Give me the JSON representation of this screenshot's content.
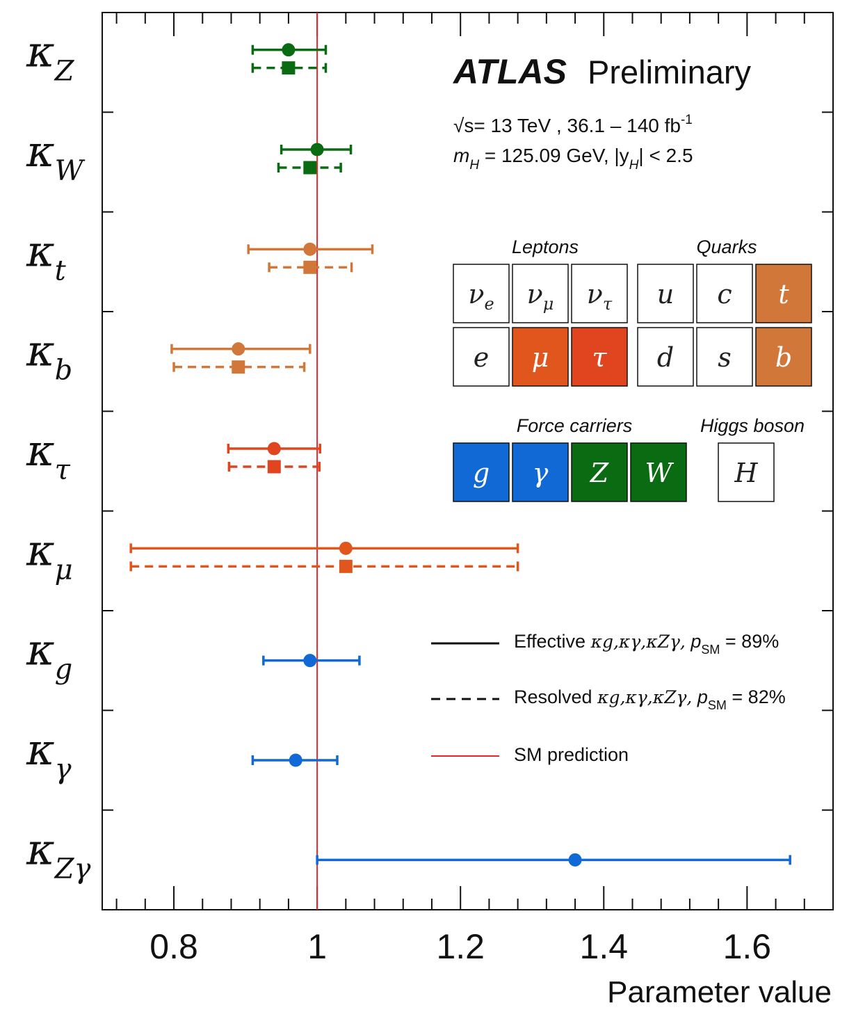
{
  "chart_data": {
    "type": "scatter",
    "xlabel": "Parameter value",
    "xlim": [
      0.7,
      1.72
    ],
    "x_ticks": [
      "0.8",
      "1",
      "1.2",
      "1.4",
      "1.6"
    ],
    "reference_line": {
      "x": 1.0,
      "color": "#e8262b",
      "label": "SM prediction"
    },
    "parameters": [
      {
        "label": "κZ",
        "main": "κ",
        "sub": "Z",
        "color": "#0a6b12",
        "effective": {
          "value": 0.96,
          "low": 0.91,
          "high": 1.012
        },
        "resolved": {
          "value": 0.96,
          "low": 0.91,
          "high": 1.012
        }
      },
      {
        "label": "κW",
        "main": "κ",
        "sub": "W",
        "color": "#0a6b12",
        "effective": {
          "value": 1.0,
          "low": 0.95,
          "high": 1.047
        },
        "resolved": {
          "value": 0.99,
          "low": 0.946,
          "high": 1.033
        }
      },
      {
        "label": "κt",
        "main": "κ",
        "sub": "t",
        "color": "#d1773a",
        "effective": {
          "value": 0.99,
          "low": 0.904,
          "high": 1.077
        },
        "resolved": {
          "value": 0.99,
          "low": 0.933,
          "high": 1.048
        }
      },
      {
        "label": "κb",
        "main": "κ",
        "sub": "b",
        "color": "#d1773a",
        "effective": {
          "value": 0.89,
          "low": 0.797,
          "high": 0.99
        },
        "resolved": {
          "value": 0.89,
          "low": 0.8,
          "high": 0.982
        }
      },
      {
        "label": "κτ",
        "main": "κ",
        "sub": "τ",
        "color": "#e1451f",
        "effective": {
          "value": 0.94,
          "low": 0.876,
          "high": 1.004
        },
        "resolved": {
          "value": 0.94,
          "low": 0.877,
          "high": 1.003
        }
      },
      {
        "label": "κμ",
        "main": "κ",
        "sub": "μ",
        "color": "#e1561d",
        "effective": {
          "value": 1.04,
          "low": 0.74,
          "high": 1.28
        },
        "resolved": {
          "value": 1.04,
          "low": 0.74,
          "high": 1.28
        }
      },
      {
        "label": "κg",
        "main": "κ",
        "sub": "g",
        "color": "#1169d6",
        "effective": {
          "value": 0.99,
          "low": 0.925,
          "high": 1.059
        },
        "resolved": null
      },
      {
        "label": "κγ",
        "main": "κ",
        "sub": "γ",
        "color": "#1169d6",
        "effective": {
          "value": 0.97,
          "low": 0.91,
          "high": 1.028
        },
        "resolved": null
      },
      {
        "label": "κZγ",
        "main": "κ",
        "sub": "Zγ",
        "color": "#1169d6",
        "effective": {
          "value": 1.36,
          "low": 1.0,
          "high": 1.66
        },
        "resolved": null
      }
    ]
  },
  "header": {
    "brand": "ATLAS",
    "status": "Preliminary",
    "line1": "= 13 TeV  , 36.1 – 140 fb",
    "line1_sqrt": "√s",
    "line1_sup": "-1",
    "line2_pre": "m",
    "line2_sub": "H",
    "line2_mid": " = 125.09 GeV, |y",
    "line2_sub2": "H",
    "line2_end": "| < 2.5"
  },
  "particles": {
    "leptons_title": "Leptons",
    "quarks_title": "Quarks",
    "force_title": "Force carriers",
    "higgs_title": "Higgs boson",
    "cells": [
      {
        "sym": "ν",
        "sub": "e",
        "fill": "#ffffff",
        "text": "#222222"
      },
      {
        "sym": "ν",
        "sub": "μ",
        "fill": "#ffffff",
        "text": "#222222"
      },
      {
        "sym": "ν",
        "sub": "τ",
        "fill": "#ffffff",
        "text": "#222222"
      },
      {
        "sym": "u",
        "sub": "",
        "fill": "#ffffff",
        "text": "#222222"
      },
      {
        "sym": "c",
        "sub": "",
        "fill": "#ffffff",
        "text": "#222222"
      },
      {
        "sym": "t",
        "sub": "",
        "fill": "#d1773a",
        "text": "#ffffff"
      },
      {
        "sym": "e",
        "sub": "",
        "fill": "#ffffff",
        "text": "#222222"
      },
      {
        "sym": "μ",
        "sub": "",
        "fill": "#e1561d",
        "text": "#ffffff"
      },
      {
        "sym": "τ",
        "sub": "",
        "fill": "#e1451f",
        "text": "#ffffff"
      },
      {
        "sym": "d",
        "sub": "",
        "fill": "#ffffff",
        "text": "#222222"
      },
      {
        "sym": "s",
        "sub": "",
        "fill": "#ffffff",
        "text": "#222222"
      },
      {
        "sym": "b",
        "sub": "",
        "fill": "#d1773a",
        "text": "#ffffff"
      },
      {
        "sym": "g",
        "sub": "",
        "fill": "#1169d6",
        "text": "#ffffff"
      },
      {
        "sym": "γ",
        "sub": "",
        "fill": "#1169d6",
        "text": "#ffffff"
      },
      {
        "sym": "Z",
        "sub": "",
        "fill": "#0a6b12",
        "text": "#ffffff"
      },
      {
        "sym": "W",
        "sub": "",
        "fill": "#0a6b12",
        "text": "#ffffff"
      },
      {
        "sym": "H",
        "sub": "",
        "fill": "#ffffff",
        "text": "#222222"
      }
    ]
  },
  "legend": {
    "effective_label": "Effective",
    "resolved_label": "Resolved",
    "kappas": "κg,κγ,κZγ,",
    "effective_p": " = 89%",
    "resolved_p": " = 82%",
    "p": "p",
    "p_sub": "SM",
    "sm_label": "SM prediction"
  }
}
